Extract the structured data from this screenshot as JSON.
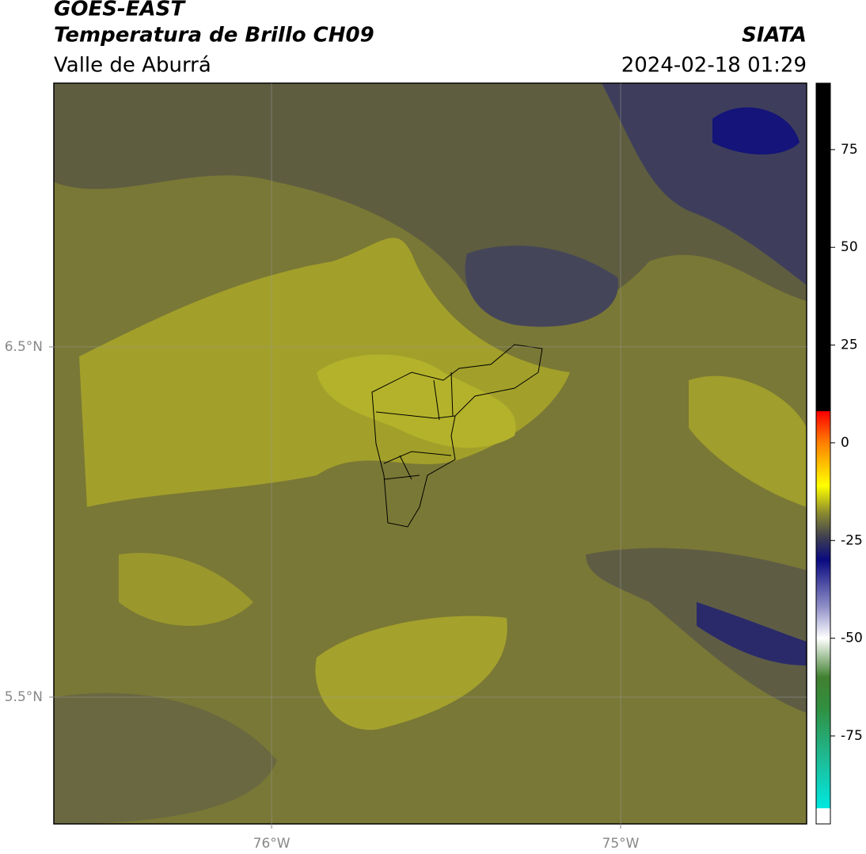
{
  "header": {
    "title": "GOES-EAST",
    "subtitle": "Temperatura de Brillo CH09",
    "region": "Valle de Aburrá",
    "source": "SIATA",
    "datetime": "2024-02-18 01:29"
  },
  "map": {
    "xlim": [
      -76.624,
      -74.467
    ],
    "ylim": [
      5.138,
      7.253
    ],
    "xticks": [
      {
        "value": -76,
        "label": "76°W"
      },
      {
        "value": -75,
        "label": "75°W"
      }
    ],
    "yticks": [
      {
        "value": 6.5,
        "label": "6.5°N"
      },
      {
        "value": 5.5,
        "label": "5.5°N"
      }
    ],
    "grid": true
  },
  "colorbar": {
    "lim": [
      -97.5,
      92
    ],
    "ticks": [
      75,
      50,
      25,
      0,
      -25,
      -50,
      -75
    ],
    "stops": [
      {
        "value": -97.5,
        "color": "#ffffff"
      },
      {
        "value": -93.6,
        "color": "#ffffff"
      },
      {
        "value": -93.4,
        "color": "#00e8e0"
      },
      {
        "value": -80,
        "color": "#20b890"
      },
      {
        "value": -68,
        "color": "#309040"
      },
      {
        "value": -60,
        "color": "#408030"
      },
      {
        "value": -50,
        "color": "#ffffff"
      },
      {
        "value": -42,
        "color": "#9090c8"
      },
      {
        "value": -30,
        "color": "#0a0a80"
      },
      {
        "value": -24,
        "color": "#404050"
      },
      {
        "value": -18,
        "color": "#8a8a30"
      },
      {
        "value": -11,
        "color": "#ffff00"
      },
      {
        "value": 0,
        "color": "#ff8000"
      },
      {
        "value": 8,
        "color": "#ff0000"
      },
      {
        "value": 8.2,
        "color": "#000000"
      },
      {
        "value": 92,
        "color": "#000000"
      }
    ]
  }
}
